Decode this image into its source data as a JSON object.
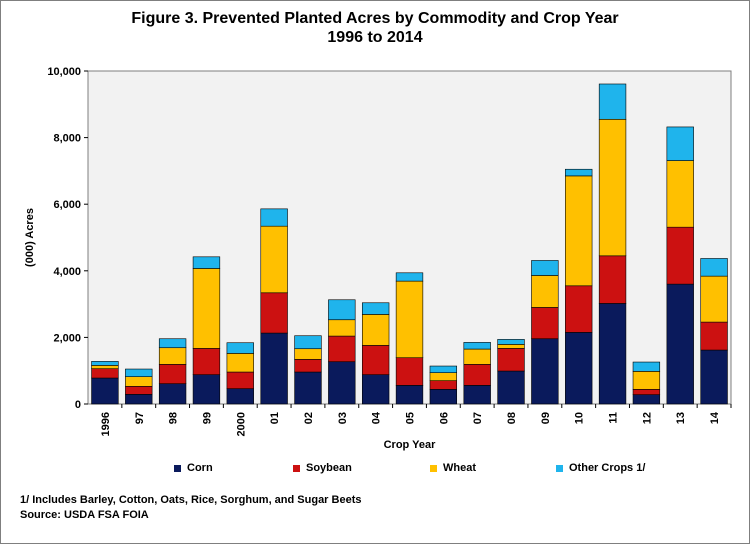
{
  "figure": {
    "title_line1": "Figure 3. Prevented Planted Acres by Commodity and Crop Year",
    "title_line2": "1996 to 2014",
    "footnote": "1/ Includes Barley, Cotton, Oats, Rice, Sorghum, and Sugar Beets",
    "source": "Source: USDA FSA FOIA"
  },
  "chart_data": {
    "type": "bar",
    "stacked": true,
    "title": "Figure 3. Prevented Planted Acres by Commodity and Crop Year 1996 to 2014",
    "xlabel": "Crop Year",
    "ylabel": "(000) Acres",
    "ylim": [
      0,
      10000
    ],
    "yticks": [
      0,
      2000,
      4000,
      6000,
      8000,
      10000
    ],
    "ytick_labels": [
      "0",
      "2,000",
      "4,000",
      "6,000",
      "8,000",
      "10,000"
    ],
    "grid": false,
    "legend_position": "bottom",
    "categories": [
      "1996",
      "97",
      "98",
      "99",
      "2000",
      "01",
      "02",
      "03",
      "04",
      "05",
      "06",
      "07",
      "08",
      "09",
      "10",
      "11",
      "12",
      "13",
      "14"
    ],
    "series": [
      {
        "name": "Corn",
        "color": "#0a1a5c",
        "values": [
          780,
          290,
          610,
          880,
          460,
          2130,
          960,
          1270,
          880,
          560,
          440,
          560,
          990,
          1960,
          2150,
          3020,
          280,
          3600,
          1620
        ]
      },
      {
        "name": "Soybean",
        "color": "#cc1111",
        "values": [
          280,
          240,
          580,
          790,
          500,
          1210,
          380,
          770,
          880,
          830,
          260,
          630,
          680,
          940,
          1400,
          1430,
          160,
          1710,
          840
        ]
      },
      {
        "name": "Wheat",
        "color": "#ffc000",
        "values": [
          100,
          290,
          500,
          2400,
          560,
          2000,
          320,
          490,
          930,
          2300,
          240,
          460,
          120,
          960,
          3300,
          4100,
          540,
          2000,
          1380
        ]
      },
      {
        "name": "Other Crops 1/",
        "color": "#1fb4ec",
        "values": [
          120,
          230,
          270,
          350,
          320,
          520,
          390,
          600,
          350,
          250,
          200,
          200,
          150,
          450,
          200,
          1060,
          280,
          1010,
          530
        ]
      }
    ]
  }
}
